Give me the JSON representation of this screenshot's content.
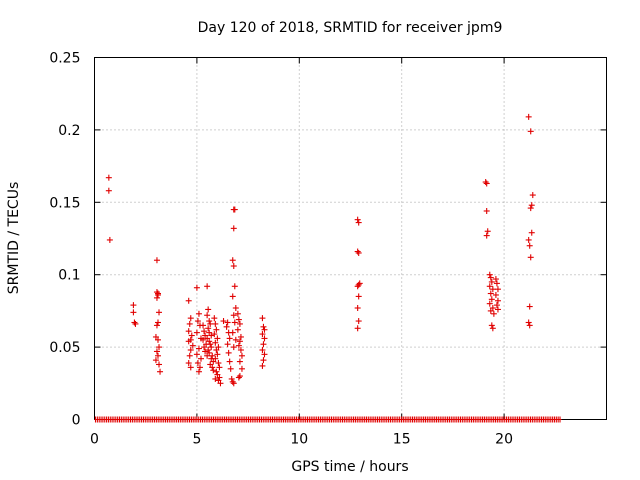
{
  "chart_data": {
    "type": "scatter",
    "title": "Day 120 of 2018, SRMTID for receiver jpm9",
    "xlabel": "GPS time / hours",
    "ylabel": "SRMTID / TECUs",
    "xlim": [
      0,
      25
    ],
    "ylim": [
      0,
      0.25
    ],
    "xticks": [
      0,
      5,
      10,
      15,
      20
    ],
    "xtick_labels": [
      "0",
      "5",
      "10",
      "15",
      "20"
    ],
    "yticks": [
      0,
      0.05,
      0.1,
      0.15,
      0.2,
      0.25
    ],
    "ytick_labels": [
      "0",
      "0.05",
      "0.1",
      "0.15",
      "0.2",
      "0.25"
    ],
    "grid": true,
    "marker": "+",
    "color": "#e00000",
    "series": [
      {
        "name": "SRMTID",
        "points": [
          [
            0.7,
            0.167
          ],
          [
            0.7,
            0.158
          ],
          [
            0.75,
            0.124
          ],
          [
            1.9,
            0.079
          ],
          [
            1.9,
            0.074
          ],
          [
            1.95,
            0.067
          ],
          [
            2.0,
            0.066
          ],
          [
            3.05,
            0.11
          ],
          [
            3.05,
            0.088
          ],
          [
            3.1,
            0.087
          ],
          [
            3.1,
            0.086
          ],
          [
            3.05,
            0.084
          ],
          [
            3.15,
            0.074
          ],
          [
            3.1,
            0.067
          ],
          [
            3.05,
            0.065
          ],
          [
            3.0,
            0.057
          ],
          [
            3.1,
            0.055
          ],
          [
            3.15,
            0.05
          ],
          [
            3.05,
            0.047
          ],
          [
            3.1,
            0.044
          ],
          [
            3.0,
            0.041
          ],
          [
            3.15,
            0.038
          ],
          [
            3.2,
            0.033
          ],
          [
            4.6,
            0.082
          ],
          [
            4.7,
            0.07
          ],
          [
            4.65,
            0.066
          ],
          [
            4.6,
            0.061
          ],
          [
            4.75,
            0.058
          ],
          [
            4.7,
            0.055
          ],
          [
            4.6,
            0.054
          ],
          [
            4.8,
            0.051
          ],
          [
            4.7,
            0.048
          ],
          [
            4.65,
            0.044
          ],
          [
            4.6,
            0.039
          ],
          [
            4.7,
            0.036
          ],
          [
            5.0,
            0.091
          ],
          [
            5.1,
            0.073
          ],
          [
            5.05,
            0.068
          ],
          [
            5.15,
            0.065
          ],
          [
            5.0,
            0.06
          ],
          [
            5.2,
            0.056
          ],
          [
            5.1,
            0.049
          ],
          [
            5.0,
            0.045
          ],
          [
            5.2,
            0.042
          ],
          [
            5.05,
            0.039
          ],
          [
            5.15,
            0.036
          ],
          [
            5.1,
            0.033
          ],
          [
            5.3,
            0.065
          ],
          [
            5.35,
            0.061
          ],
          [
            5.4,
            0.058
          ],
          [
            5.3,
            0.055
          ],
          [
            5.45,
            0.052
          ],
          [
            5.35,
            0.05
          ],
          [
            5.4,
            0.047
          ],
          [
            5.5,
            0.044
          ],
          [
            5.5,
            0.092
          ],
          [
            5.55,
            0.076
          ],
          [
            5.5,
            0.072
          ],
          [
            5.6,
            0.068
          ],
          [
            5.65,
            0.066
          ],
          [
            5.55,
            0.063
          ],
          [
            5.6,
            0.06
          ],
          [
            5.7,
            0.058
          ],
          [
            5.5,
            0.056
          ],
          [
            5.6,
            0.054
          ],
          [
            5.65,
            0.052
          ],
          [
            5.7,
            0.05
          ],
          [
            5.55,
            0.048
          ],
          [
            5.6,
            0.046
          ],
          [
            5.75,
            0.044
          ],
          [
            5.7,
            0.042
          ],
          [
            5.8,
            0.04
          ],
          [
            5.65,
            0.038
          ],
          [
            5.75,
            0.036
          ],
          [
            5.8,
            0.034
          ],
          [
            5.85,
            0.07
          ],
          [
            5.9,
            0.066
          ],
          [
            5.95,
            0.062
          ],
          [
            5.85,
            0.059
          ],
          [
            6.0,
            0.056
          ],
          [
            5.9,
            0.053
          ],
          [
            6.05,
            0.05
          ],
          [
            5.95,
            0.048
          ],
          [
            6.0,
            0.045
          ],
          [
            5.9,
            0.042
          ],
          [
            6.05,
            0.039
          ],
          [
            6.1,
            0.036
          ],
          [
            5.95,
            0.033
          ],
          [
            6.0,
            0.031
          ],
          [
            6.1,
            0.029
          ],
          [
            6.05,
            0.027
          ],
          [
            6.15,
            0.025
          ],
          [
            5.9,
            0.028
          ],
          [
            6.3,
            0.068
          ],
          [
            6.5,
            0.067
          ],
          [
            6.45,
            0.064
          ],
          [
            6.55,
            0.06
          ],
          [
            6.6,
            0.056
          ],
          [
            6.5,
            0.052
          ],
          [
            6.55,
            0.046
          ],
          [
            6.6,
            0.04
          ],
          [
            6.65,
            0.035
          ],
          [
            6.8,
            0.145
          ],
          [
            6.85,
            0.145
          ],
          [
            6.8,
            0.132
          ],
          [
            6.75,
            0.11
          ],
          [
            6.8,
            0.106
          ],
          [
            6.85,
            0.092
          ],
          [
            6.75,
            0.085
          ],
          [
            6.9,
            0.077
          ],
          [
            6.8,
            0.072
          ],
          [
            6.85,
            0.067
          ],
          [
            6.75,
            0.06
          ],
          [
            6.9,
            0.055
          ],
          [
            6.8,
            0.05
          ],
          [
            6.7,
            0.028
          ],
          [
            6.75,
            0.026
          ],
          [
            6.8,
            0.025
          ],
          [
            7.0,
            0.073
          ],
          [
            7.05,
            0.069
          ],
          [
            7.1,
            0.066
          ],
          [
            7.0,
            0.062
          ],
          [
            7.15,
            0.057
          ],
          [
            7.1,
            0.054
          ],
          [
            7.05,
            0.051
          ],
          [
            7.15,
            0.048
          ],
          [
            7.2,
            0.044
          ],
          [
            7.1,
            0.04
          ],
          [
            7.2,
            0.035
          ],
          [
            7.1,
            0.03
          ],
          [
            7.05,
            0.029
          ],
          [
            8.2,
            0.07
          ],
          [
            8.25,
            0.064
          ],
          [
            8.3,
            0.062
          ],
          [
            8.2,
            0.059
          ],
          [
            8.3,
            0.056
          ],
          [
            8.25,
            0.052
          ],
          [
            8.2,
            0.048
          ],
          [
            8.3,
            0.045
          ],
          [
            8.25,
            0.041
          ],
          [
            8.2,
            0.037
          ],
          [
            12.85,
            0.138
          ],
          [
            12.9,
            0.136
          ],
          [
            12.85,
            0.116
          ],
          [
            12.9,
            0.115
          ],
          [
            12.95,
            0.094
          ],
          [
            12.9,
            0.093
          ],
          [
            12.85,
            0.092
          ],
          [
            12.9,
            0.085
          ],
          [
            12.85,
            0.077
          ],
          [
            12.9,
            0.068
          ],
          [
            12.85,
            0.063
          ],
          [
            19.1,
            0.164
          ],
          [
            19.15,
            0.163
          ],
          [
            19.15,
            0.144
          ],
          [
            19.2,
            0.13
          ],
          [
            19.15,
            0.127
          ],
          [
            19.3,
            0.1
          ],
          [
            19.35,
            0.098
          ],
          [
            19.4,
            0.095
          ],
          [
            19.3,
            0.092
          ],
          [
            19.45,
            0.09
          ],
          [
            19.35,
            0.087
          ],
          [
            19.4,
            0.083
          ],
          [
            19.3,
            0.08
          ],
          [
            19.45,
            0.077
          ],
          [
            19.35,
            0.075
          ],
          [
            19.5,
            0.073
          ],
          [
            19.4,
            0.065
          ],
          [
            19.45,
            0.063
          ],
          [
            19.6,
            0.097
          ],
          [
            19.65,
            0.094
          ],
          [
            19.7,
            0.09
          ],
          [
            19.6,
            0.086
          ],
          [
            19.7,
            0.082
          ],
          [
            19.65,
            0.079
          ],
          [
            19.7,
            0.076
          ],
          [
            21.2,
            0.209
          ],
          [
            21.3,
            0.199
          ],
          [
            21.4,
            0.155
          ],
          [
            21.35,
            0.148
          ],
          [
            21.3,
            0.146
          ],
          [
            21.35,
            0.129
          ],
          [
            21.2,
            0.124
          ],
          [
            21.25,
            0.12
          ],
          [
            21.3,
            0.112
          ],
          [
            21.25,
            0.078
          ],
          [
            21.2,
            0.067
          ],
          [
            21.25,
            0.065
          ]
        ]
      }
    ],
    "zero_band": {
      "value": 0,
      "x_range": [
        0,
        22.8
      ],
      "note": "dense row of zero-valued points along the x axis"
    }
  }
}
